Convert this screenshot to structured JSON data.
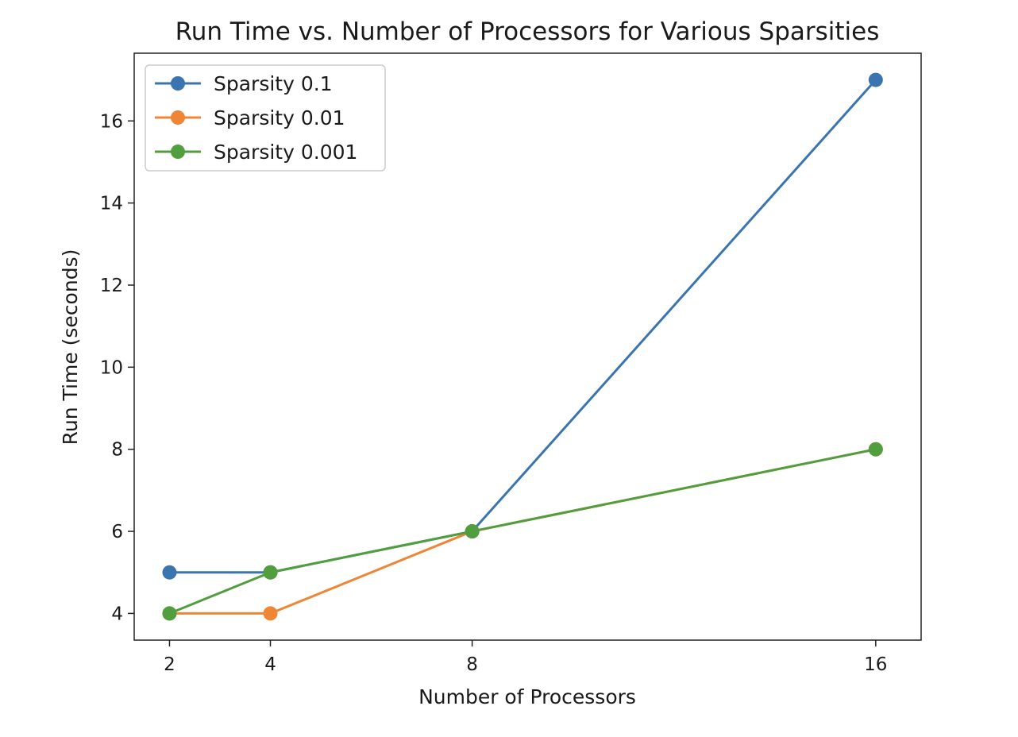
{
  "chart_data": {
    "type": "line",
    "title": "Run Time vs. Number of Processors for Various Sparsities",
    "xlabel": "Number of Processors",
    "ylabel": "Run Time (seconds)",
    "x": [
      2,
      4,
      8,
      16
    ],
    "xticks": [
      "2",
      "4",
      "8",
      "16"
    ],
    "yticks": [
      "4",
      "6",
      "8",
      "10",
      "12",
      "14",
      "16"
    ],
    "xlim": [
      1.3,
      16.9
    ],
    "ylim": [
      3.35,
      17.65
    ],
    "grid": false,
    "legend_position": "top-left",
    "series": [
      {
        "name": "Sparsity 0.1",
        "color": "#3b75af",
        "values": [
          5,
          5,
          6,
          17
        ]
      },
      {
        "name": "Sparsity 0.01",
        "color": "#ef8636",
        "values": [
          4,
          4,
          6,
          8
        ]
      },
      {
        "name": "Sparsity 0.001",
        "color": "#519e3e",
        "values": [
          4,
          5,
          6,
          8
        ]
      }
    ]
  }
}
